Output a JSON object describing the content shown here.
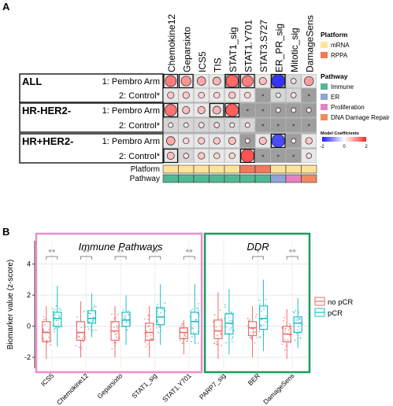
{
  "panel_a": {
    "label": "A",
    "columns": [
      "Chemokine12",
      "Geparsixto",
      "ICS5",
      "TIS",
      "STAT1_sig",
      "STAT1.Y701",
      "STAT3.S727",
      "ER_PR_sig",
      "Mitotic_sig",
      "DamageSens"
    ],
    "groups": [
      {
        "name": "ALL",
        "rows": [
          "1: Pembro Arm",
          "2: Control*"
        ]
      },
      {
        "name": "HR-HER2-",
        "rows": [
          "1: Pembro Arm",
          "2: Control*"
        ]
      },
      {
        "name": "HR+HER2-",
        "rows": [
          "1: Pembro Arm",
          "2: Control*"
        ]
      }
    ],
    "annotation_labels": {
      "platform": "Platform",
      "pathway": "Pathway"
    },
    "legend": {
      "platform_title": "Platform",
      "platform_items": [
        {
          "label": "mRNA",
          "color": "#fde49a"
        },
        {
          "label": "RPPA",
          "color": "#f07b5a"
        }
      ],
      "pathway_title": "Pathway",
      "pathway_items": [
        {
          "label": "Immune",
          "color": "#52b893"
        },
        {
          "label": "ER",
          "color": "#8fa3d4"
        },
        {
          "label": "Proliferation",
          "color": "#e682c0"
        },
        {
          "label": "DNA Damage Repair",
          "color": "#f28a5e"
        }
      ],
      "coef_title": "Model Coefficients",
      "coef_ticks": [
        "-2",
        "0",
        "2"
      ]
    },
    "platform_colors": [
      "#fde49a",
      "#fde49a",
      "#fde49a",
      "#fde49a",
      "#fde49a",
      "#f07b5a",
      "#f07b5a",
      "#fde49a",
      "#fde49a",
      "#fde49a"
    ],
    "pathway_colors": [
      "#52b893",
      "#52b893",
      "#52b893",
      "#52b893",
      "#52b893",
      "#52b893",
      "#52b893",
      "#8fa3d4",
      "#e682c0",
      "#f28a5e"
    ],
    "cells": [
      [
        [
          1.2,
          1,
          0,
          1
        ],
        [
          1.0,
          1,
          0,
          1
        ],
        [
          0.8,
          1,
          0,
          0
        ],
        [
          0.7,
          1,
          0,
          0
        ],
        [
          1.4,
          1,
          1,
          1
        ],
        [
          1.2,
          1,
          0,
          1
        ],
        [
          0.6,
          1,
          0,
          0
        ],
        [
          -1.8,
          1,
          1,
          1
        ],
        [
          0.3,
          0,
          0,
          0
        ],
        [
          0.9,
          1,
          0,
          0
        ]
      ],
      [
        [
          0.5,
          1,
          0,
          0
        ],
        [
          0.5,
          1,
          0,
          0
        ],
        [
          0.4,
          1,
          0,
          0
        ],
        [
          0.4,
          1,
          0,
          0
        ],
        [
          0.5,
          1,
          0,
          0
        ],
        [
          0.4,
          1,
          0,
          0
        ],
        [
          0,
          0,
          1,
          0
        ],
        [
          0.2,
          0,
          0,
          0
        ],
        [
          0.3,
          0,
          0,
          0
        ],
        [
          0,
          0,
          1,
          0
        ]
      ],
      [
        [
          1.3,
          1,
          0,
          1
        ],
        [
          0.6,
          1,
          0,
          0
        ],
        [
          0.6,
          1,
          0,
          0
        ],
        [
          0.7,
          1,
          0,
          1
        ],
        [
          1.5,
          1,
          0,
          1
        ],
        [
          0,
          0,
          1,
          0
        ],
        [
          0,
          0,
          1,
          0
        ],
        [
          0.2,
          0,
          1,
          0
        ],
        [
          0.2,
          0,
          1,
          0
        ],
        [
          0.2,
          0,
          1,
          0
        ]
      ],
      [
        [
          0.2,
          0,
          0,
          0
        ],
        [
          0.2,
          0,
          0,
          0
        ],
        [
          0.3,
          0,
          0,
          0
        ],
        [
          0.3,
          0,
          0,
          0
        ],
        [
          0.2,
          0,
          0,
          0
        ],
        [
          0.2,
          0,
          0,
          0
        ],
        [
          0,
          0,
          1,
          0
        ],
        [
          0,
          0,
          1,
          0
        ],
        [
          0,
          0,
          1,
          0
        ],
        [
          0,
          0,
          1,
          0
        ]
      ],
      [
        [
          0.8,
          1,
          0,
          0
        ],
        [
          0.4,
          1,
          0,
          0
        ],
        [
          0.5,
          1,
          0,
          0
        ],
        [
          0.5,
          1,
          0,
          0
        ],
        [
          0.6,
          1,
          0,
          0
        ],
        [
          0.2,
          0,
          1,
          0
        ],
        [
          0.6,
          1,
          0,
          0
        ],
        [
          -1.6,
          1,
          0,
          1
        ],
        [
          0.2,
          0,
          1,
          0
        ],
        [
          0.5,
          1,
          0,
          0
        ]
      ],
      [
        [
          0.6,
          1,
          0,
          1
        ],
        [
          0.3,
          0,
          0,
          0
        ],
        [
          0.5,
          1,
          0,
          0
        ],
        [
          0.4,
          1,
          0,
          0
        ],
        [
          0.4,
          1,
          0,
          0
        ],
        [
          1.6,
          1,
          0,
          1
        ],
        [
          0,
          0,
          1,
          0
        ],
        [
          0,
          0,
          1,
          0
        ],
        [
          0,
          0,
          1,
          0
        ],
        [
          0.3,
          1,
          0,
          0
        ]
      ]
    ]
  },
  "panel_b": {
    "label": "B",
    "section_titles": [
      "Immune Pathways",
      "DDR"
    ],
    "legend": [
      {
        "label": "no pCR",
        "color": "#f06b6b"
      },
      {
        "label": "pCR",
        "color": "#1fbfc4"
      }
    ],
    "chart_data": {
      "type": "boxplot",
      "ylabel": "Biomarker value (z-score)",
      "ylim": [
        -2.7,
        5.5
      ],
      "yticks": [
        -2,
        0,
        2,
        4
      ],
      "categories": [
        "ICS5",
        "Chemokine12",
        "Geparsixto",
        "STAT1_sig",
        "STAT1.Y701",
        "PARP7_sig",
        "BER",
        "DamageSens"
      ],
      "significance": [
        "**",
        "**",
        "**",
        "**",
        "**",
        "",
        "*",
        "**"
      ],
      "series": [
        {
          "name": "no pCR",
          "boxes": [
            [
              -2.1,
              -1.0,
              -0.4,
              0.3,
              1.3
            ],
            [
              -2.0,
              -0.9,
              -0.4,
              0.3,
              1.6
            ],
            [
              -2.0,
              -0.9,
              -0.3,
              0.3,
              1.3
            ],
            [
              -2.0,
              -0.9,
              -0.4,
              0.2,
              1.3
            ],
            [
              -1.8,
              -0.8,
              -0.4,
              -0.1,
              0.4
            ],
            [
              -2.1,
              -0.8,
              -0.3,
              0.4,
              2.2
            ],
            [
              -2.0,
              -0.6,
              -0.1,
              0.3,
              1.3
            ],
            [
              -2.1,
              -1.0,
              -0.5,
              0.0,
              1.1
            ]
          ]
        },
        {
          "name": "pCR",
          "boxes": [
            [
              -1.3,
              0.0,
              0.5,
              0.9,
              2.6
            ],
            [
              -0.7,
              0.2,
              0.5,
              1.0,
              2.1
            ],
            [
              -1.2,
              0.0,
              0.4,
              0.9,
              2.0
            ],
            [
              -1.2,
              0.1,
              0.6,
              1.2,
              2.7
            ],
            [
              -1.1,
              -0.5,
              0.3,
              0.9,
              2.7
            ],
            [
              -1.8,
              -0.5,
              0.2,
              0.8,
              2.4
            ],
            [
              -1.6,
              -0.2,
              0.5,
              1.3,
              3.0
            ],
            [
              -1.4,
              -0.4,
              0.2,
              0.6,
              1.8
            ]
          ]
        }
      ]
    }
  }
}
